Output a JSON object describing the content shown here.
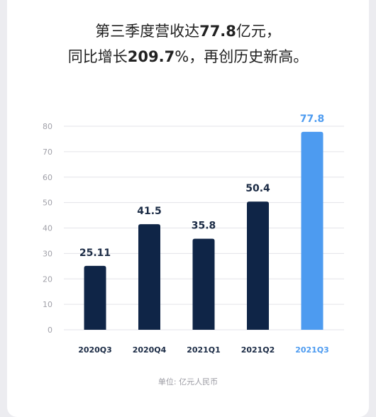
{
  "headline": {
    "line1_pre": "第三季度营收达",
    "line1_num": "77.8",
    "line1_post": "亿元，",
    "line2_pre": "同比增长",
    "line2_num": "209.7",
    "line2_post": "%，再创历史新高。"
  },
  "unit_label": "单位: 亿元人民币",
  "colors": {
    "bar_default": "#0f2547",
    "bar_highlight": "#4d9bf0",
    "label_default": "#1b2b45",
    "label_highlight": "#4d9bf0",
    "grid": "#e3e3e8",
    "tick": "#a0a0a8"
  },
  "chart_data": {
    "type": "bar",
    "title": "",
    "xlabel": "",
    "ylabel": "",
    "categories": [
      "2020Q3",
      "2020Q4",
      "2021Q1",
      "2021Q2",
      "2021Q3"
    ],
    "values": [
      25.11,
      41.5,
      35.8,
      50.4,
      77.8
    ],
    "data_labels": [
      "25.11",
      "41.5",
      "35.8",
      "50.4",
      "77.8"
    ],
    "highlight_index": 4,
    "ylim": [
      0,
      80
    ],
    "yticks": [
      0,
      10,
      20,
      30,
      40,
      50,
      60,
      70,
      80
    ],
    "grid": true,
    "legend": "none"
  }
}
